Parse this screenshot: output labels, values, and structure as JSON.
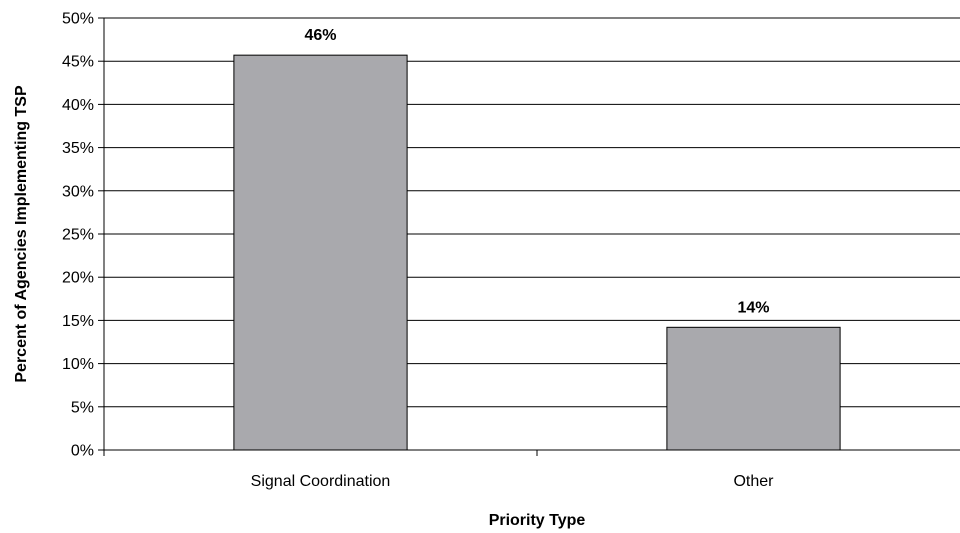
{
  "chart_data": {
    "type": "bar",
    "categories": [
      "Signal Coordination",
      "Other"
    ],
    "values": [
      45.7,
      14.2
    ],
    "data_labels": [
      "46%",
      "14%"
    ],
    "xlabel": "Priority Type",
    "ylabel": "Percent of Agencies Implementing TSP",
    "ylim": [
      0,
      50
    ],
    "y_ticks": [
      "0%",
      "5%",
      "10%",
      "15%",
      "20%",
      "25%",
      "30%",
      "35%",
      "40%",
      "45%",
      "50%"
    ],
    "grid": true,
    "legend": "none",
    "colors": {
      "bar_fill": "#a9a9ad",
      "bar_stroke": "#000000",
      "grid": "#000000"
    }
  }
}
